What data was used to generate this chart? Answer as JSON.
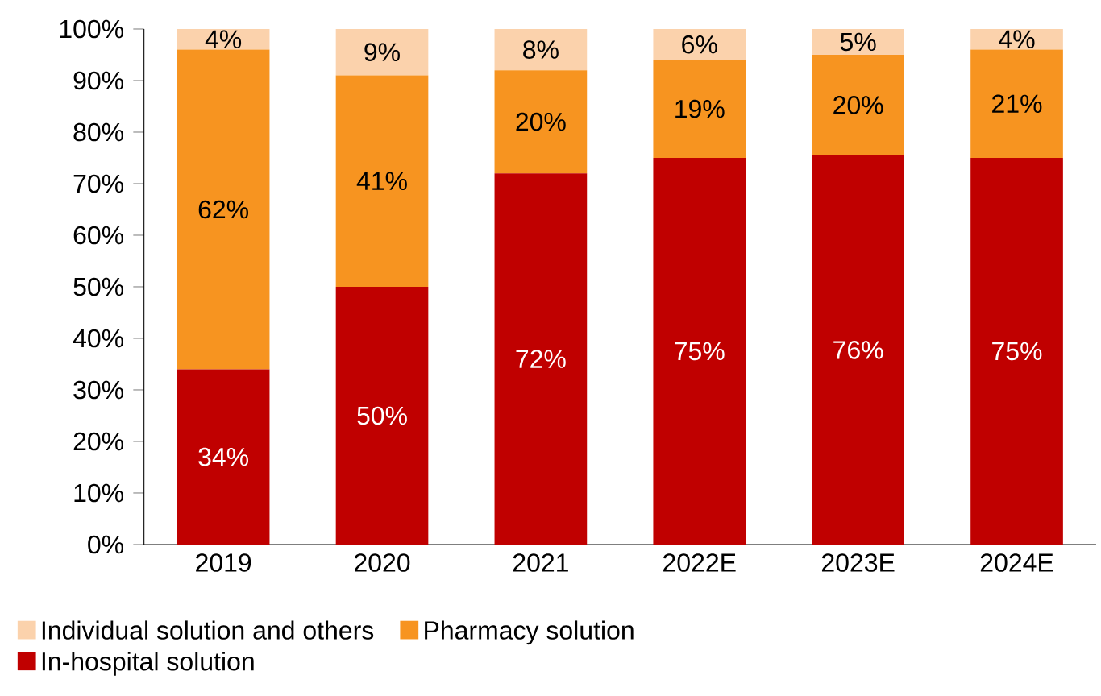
{
  "chart_data": {
    "type": "bar",
    "stacked": true,
    "categories": [
      "2019",
      "2020",
      "2021",
      "2022E",
      "2023E",
      "2024E"
    ],
    "series": [
      {
        "name": "In-hospital solution",
        "color": "#c00000",
        "values": [
          34,
          50,
          72,
          75,
          75.5,
          75
        ],
        "value_labels": [
          "34%",
          "50%",
          "72%",
          "75%",
          "76%",
          "75%"
        ]
      },
      {
        "name": "Pharmacy solution",
        "color": "#f79420",
        "values": [
          62,
          41,
          20,
          19,
          19.5,
          21
        ],
        "value_labels": [
          "62%",
          "41%",
          "20%",
          "19%",
          "20%",
          "21%"
        ]
      },
      {
        "name": "Individual solution and others",
        "color": "#fbd2ac",
        "values": [
          4,
          9,
          8,
          6,
          5,
          4
        ],
        "value_labels": [
          "4%",
          "9%",
          "8%",
          "6%",
          "5%",
          "4%"
        ]
      }
    ],
    "ylim": [
      0,
      100
    ],
    "yticks": [
      {
        "value": 0,
        "label": "0%"
      },
      {
        "value": 10,
        "label": "10%"
      },
      {
        "value": 20,
        "label": "20%"
      },
      {
        "value": 30,
        "label": "30%"
      },
      {
        "value": 40,
        "label": "40%"
      },
      {
        "value": 50,
        "label": "50%"
      },
      {
        "value": 60,
        "label": "60%"
      },
      {
        "value": 70,
        "label": "70%"
      },
      {
        "value": 80,
        "label": "80%"
      },
      {
        "value": 90,
        "label": "90%"
      },
      {
        "value": 100,
        "label": "100%"
      }
    ],
    "legend": "bottom",
    "grid": false
  }
}
